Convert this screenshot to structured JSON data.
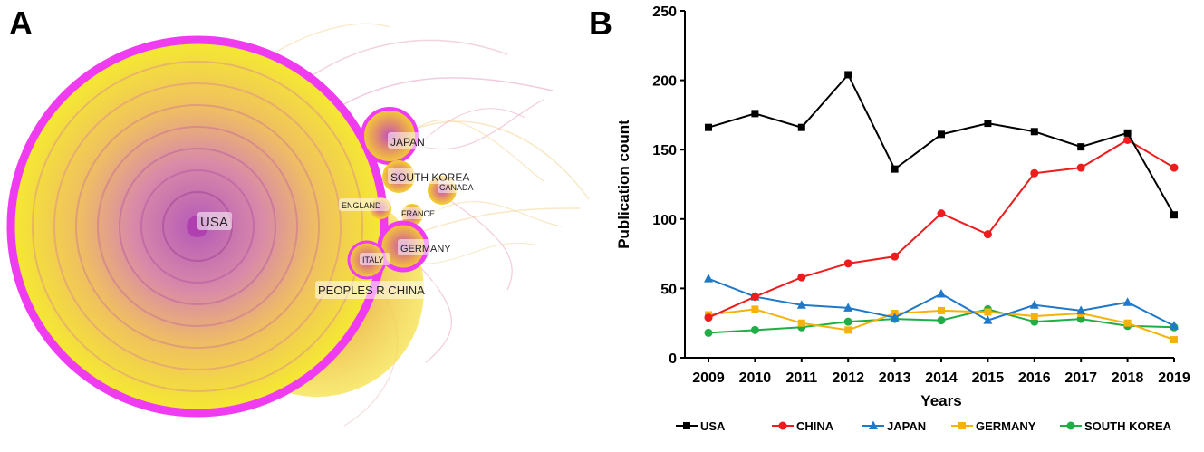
{
  "panels": {
    "a_label": "A",
    "b_label": "B"
  },
  "network": {
    "nodes": [
      {
        "label": "USA"
      },
      {
        "label": "JAPAN"
      },
      {
        "label": "SOUTH KOREA"
      },
      {
        "label": "CANADA"
      },
      {
        "label": "ENGLAND"
      },
      {
        "label": "FRANCE"
      },
      {
        "label": "GERMANY"
      },
      {
        "label": "ITALY"
      },
      {
        "label": "PEOPLES R CHINA"
      }
    ],
    "colors": {
      "ring": "#f03cf0",
      "core": "#c060c0",
      "halo": "#f5e020",
      "link": "#e9a8c8"
    }
  },
  "chart_data": {
    "type": "line",
    "title": "",
    "xlabel": "Years",
    "ylabel": "Publication count",
    "x": [
      2009,
      2010,
      2011,
      2012,
      2013,
      2014,
      2015,
      2016,
      2017,
      2018,
      2019
    ],
    "ylim": [
      0,
      250
    ],
    "yticks": [
      0,
      50,
      100,
      150,
      200,
      250
    ],
    "grid": false,
    "legend_position": "bottom",
    "series": [
      {
        "name": "USA",
        "color": "#000000",
        "marker": "square",
        "values": [
          166,
          176,
          166,
          204,
          136,
          161,
          169,
          163,
          152,
          162,
          103
        ]
      },
      {
        "name": "CHINA",
        "color": "#ee1c1c",
        "marker": "circle",
        "values": [
          29,
          44,
          58,
          68,
          73,
          104,
          89,
          133,
          137,
          157,
          137
        ]
      },
      {
        "name": "JAPAN",
        "color": "#1f78c8",
        "marker": "triangle",
        "values": [
          57,
          44,
          38,
          36,
          29,
          46,
          27,
          38,
          34,
          40,
          23
        ]
      },
      {
        "name": "GERMANY",
        "color": "#f5b20a",
        "marker": "square",
        "values": [
          31,
          35,
          25,
          20,
          32,
          34,
          33,
          30,
          32,
          25,
          13
        ]
      },
      {
        "name": "SOUTH KOREA",
        "color": "#1fae45",
        "marker": "circle",
        "values": [
          18,
          20,
          22,
          26,
          28,
          27,
          35,
          26,
          28,
          23,
          22
        ]
      }
    ]
  }
}
